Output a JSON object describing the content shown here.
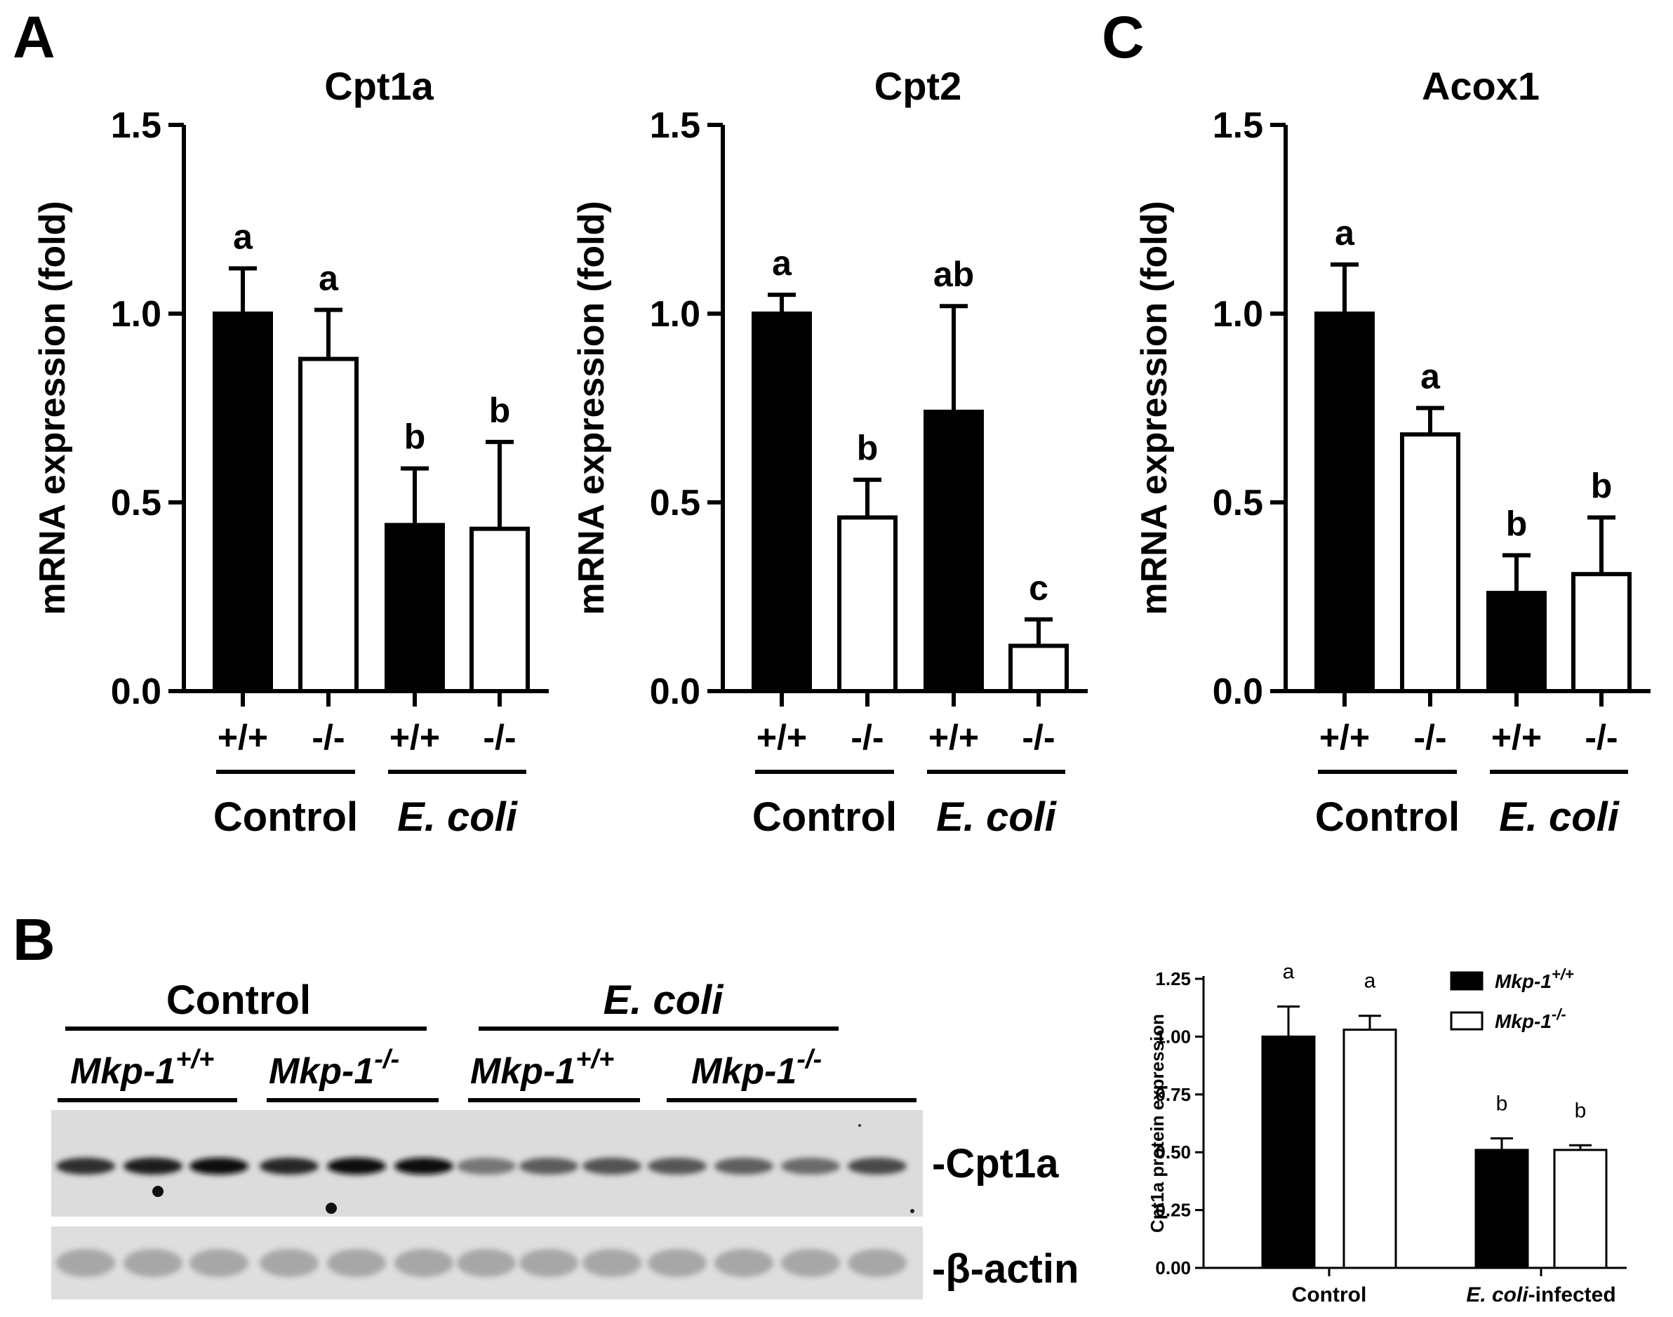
{
  "panels": {
    "A": "A",
    "B": "B",
    "C": "C"
  },
  "colors": {
    "wild_type_fill": "#000000",
    "knockout_fill": "#ffffff",
    "axis": "#000000"
  },
  "chart_data": [
    {
      "id": "cpt1a",
      "type": "bar",
      "title": "Cpt1a",
      "ylabel": "mRNA expression (fold)",
      "ylim": [
        0,
        1.5
      ],
      "yticks": [
        "0.0",
        "0.5",
        "1.0",
        "1.5"
      ],
      "categories": [
        "+/+",
        "-/-",
        "+/+",
        "-/-"
      ],
      "groups": [
        "Control",
        "E. coli"
      ],
      "values": [
        1.0,
        0.88,
        0.44,
        0.43
      ],
      "errors": [
        0.12,
        0.13,
        0.15,
        0.23
      ],
      "fills": [
        "black",
        "white",
        "black",
        "white"
      ],
      "labels": [
        "a",
        "a",
        "b",
        "b"
      ]
    },
    {
      "id": "cpt2",
      "type": "bar",
      "title": "Cpt2",
      "ylabel": "mRNA expression (fold)",
      "ylim": [
        0,
        1.5
      ],
      "yticks": [
        "0.0",
        "0.5",
        "1.0",
        "1.5"
      ],
      "categories": [
        "+/+",
        "-/-",
        "+/+",
        "-/-"
      ],
      "groups": [
        "Control",
        "E. coli"
      ],
      "values": [
        1.0,
        0.46,
        0.74,
        0.12
      ],
      "errors": [
        0.05,
        0.1,
        0.28,
        0.07
      ],
      "fills": [
        "black",
        "white",
        "black",
        "white"
      ],
      "labels": [
        "a",
        "b",
        "ab",
        "c"
      ]
    },
    {
      "id": "acox1",
      "type": "bar",
      "title": "Acox1",
      "ylabel": "mRNA expression (fold)",
      "ylim": [
        0,
        1.5
      ],
      "yticks": [
        "0.0",
        "0.5",
        "1.0",
        "1.5"
      ],
      "categories": [
        "+/+",
        "-/-",
        "+/+",
        "-/-"
      ],
      "groups": [
        "Control",
        "E. coli"
      ],
      "values": [
        1.0,
        0.68,
        0.26,
        0.31
      ],
      "errors": [
        0.13,
        0.07,
        0.1,
        0.15
      ],
      "fills": [
        "black",
        "white",
        "black",
        "white"
      ],
      "labels": [
        "a",
        "a",
        "b",
        "b"
      ]
    },
    {
      "id": "cpt1a_protein",
      "type": "bar",
      "ylabel": "Cpt1a protein expression",
      "ylim": [
        0,
        1.25
      ],
      "yticks": [
        "0.00",
        "0.25",
        "0.50",
        "0.75",
        "1.00",
        "1.25"
      ],
      "categories": [
        "Control",
        "E. coli-infected"
      ],
      "category_parts": [
        {
          "italic": "",
          "plain": "Control"
        },
        {
          "italic": "E. coli",
          "plain": "-infected"
        }
      ],
      "series": [
        {
          "name": "Mkp-1+/+",
          "name_base": "Mkp-1",
          "name_sup": "+/+",
          "fill": "black",
          "values": [
            1.0,
            0.51
          ],
          "errors": [
            0.13,
            0.05
          ],
          "labels": [
            "a",
            "b"
          ]
        },
        {
          "name": "Mkp-1-/-",
          "name_base": "Mkp-1",
          "name_sup": "-/-",
          "fill": "white",
          "values": [
            1.03,
            0.51
          ],
          "errors": [
            0.06,
            0.02
          ],
          "labels": [
            "a",
            "b"
          ]
        }
      ],
      "legend_position": "top-right"
    }
  ],
  "blot": {
    "group_labels": [
      "Control",
      "E. coli"
    ],
    "genotype_labels": [
      {
        "base": "Mkp-1",
        "sup": "+/+"
      },
      {
        "base": "Mkp-1",
        "sup": "-/-"
      },
      {
        "base": "Mkp-1",
        "sup": "+/+"
      },
      {
        "base": "Mkp-1",
        "sup": "-/-"
      }
    ],
    "rows": [
      {
        "label": "-Cpt1a",
        "lane_intensity": [
          0.82,
          0.9,
          0.95,
          0.86,
          0.95,
          0.95,
          0.5,
          0.62,
          0.66,
          0.64,
          0.6,
          0.55,
          0.7
        ]
      },
      {
        "label": "-β-actin",
        "lane_intensity": [
          0.28,
          0.28,
          0.28,
          0.28,
          0.28,
          0.28,
          0.28,
          0.28,
          0.28,
          0.28,
          0.28,
          0.28,
          0.28
        ]
      }
    ]
  }
}
